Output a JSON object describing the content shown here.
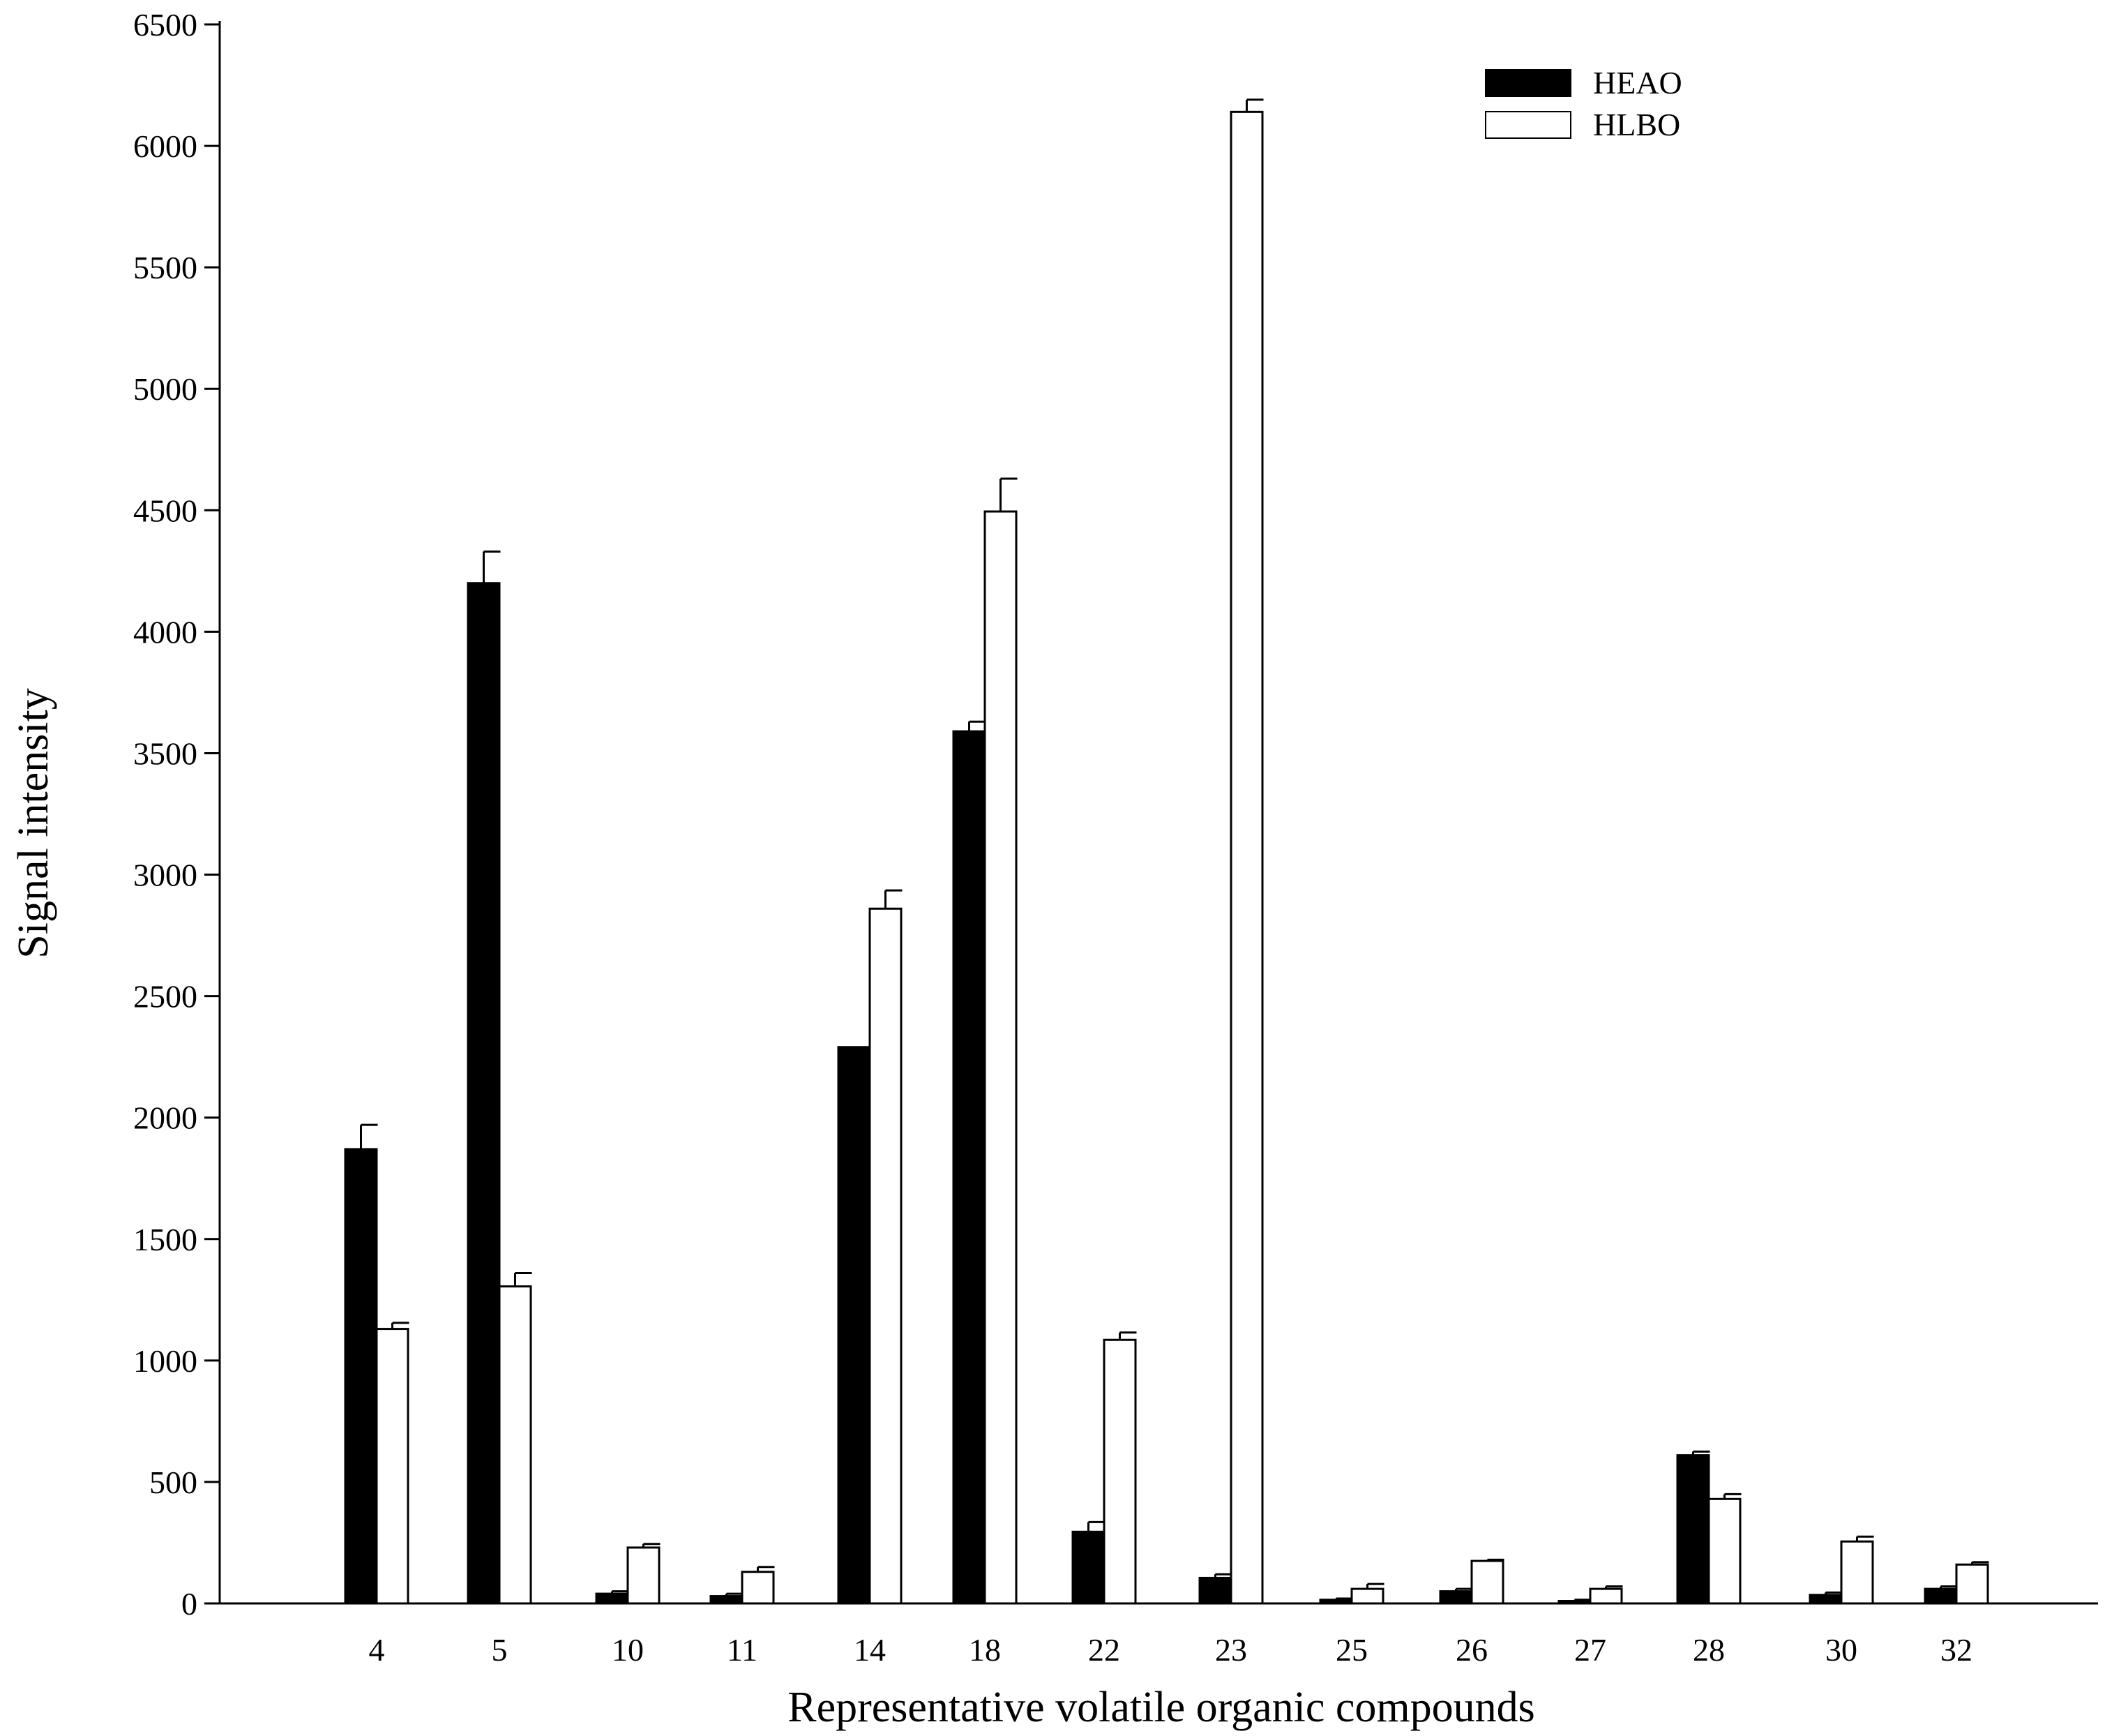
{
  "chart_data": {
    "type": "bar",
    "title": "",
    "xlabel": "Representative volatile organic compounds",
    "ylabel": "Signal intensity",
    "ylim": [
      0,
      6500
    ],
    "yticks": [
      0,
      500,
      1000,
      1500,
      2000,
      2500,
      3000,
      3500,
      4000,
      4500,
      5000,
      5500,
      6000,
      6500
    ],
    "categories": [
      "4",
      "5",
      "10",
      "11",
      "14",
      "18",
      "22",
      "23",
      "25",
      "26",
      "27",
      "28",
      "30",
      "32"
    ],
    "grid": false,
    "legend_position": "top-right",
    "series": [
      {
        "name": "HEAO",
        "color": "#000000",
        "fill": "solid",
        "values": [
          1870,
          4200,
          40,
          30,
          2290,
          3590,
          295,
          105,
          15,
          50,
          10,
          610,
          35,
          60
        ],
        "errors": [
          100,
          130,
          10,
          10,
          0,
          40,
          40,
          15,
          5,
          10,
          5,
          15,
          10,
          10
        ]
      },
      {
        "name": "HLBO",
        "color": "#ffffff",
        "fill": "outline",
        "values": [
          1130,
          1305,
          230,
          130,
          2860,
          4495,
          1085,
          6140,
          60,
          175,
          60,
          430,
          255,
          160
        ],
        "errors": [
          25,
          55,
          15,
          20,
          75,
          135,
          30,
          50,
          20,
          5,
          10,
          20,
          20,
          10
        ]
      }
    ]
  }
}
